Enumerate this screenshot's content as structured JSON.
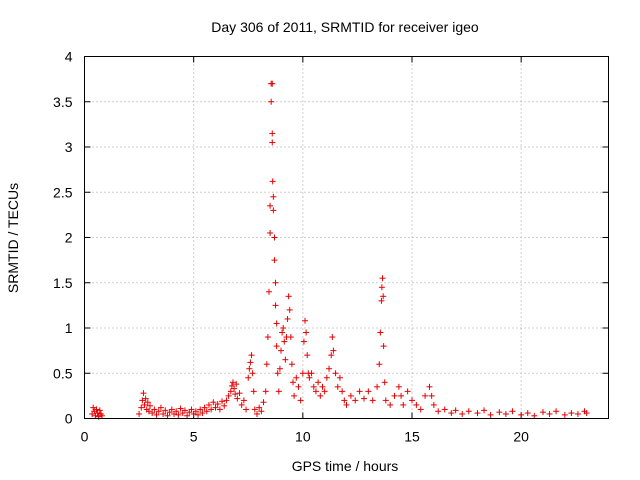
{
  "chart_data": {
    "type": "scatter",
    "title": "Day 306 of 2011, SRMTID for receiver igeo",
    "xlabel": "GPS time / hours",
    "ylabel": "SRMTID / TECUs",
    "xlim": [
      0,
      24
    ],
    "ylim": [
      0,
      4
    ],
    "xticks": [
      0,
      5,
      10,
      15,
      20
    ],
    "yticks": [
      0,
      0.5,
      1,
      1.5,
      2,
      2.5,
      3,
      3.5,
      4
    ],
    "xtick_labels": [
      "0",
      "5",
      "10",
      "15",
      "20"
    ],
    "ytick_labels": [
      "0",
      "0.5",
      "1",
      "1.5",
      "2",
      "2.5",
      "3",
      "3.5",
      "4"
    ],
    "grid": true,
    "legend": "none",
    "marker": "plus",
    "color": "#e60000",
    "series": [
      {
        "points": [
          [
            0.35,
            0.05
          ],
          [
            0.4,
            0.12
          ],
          [
            0.45,
            0.08
          ],
          [
            0.5,
            0.03
          ],
          [
            0.55,
            0.1
          ],
          [
            0.6,
            0.06
          ],
          [
            0.65,
            0.02
          ],
          [
            0.7,
            0.09
          ],
          [
            0.75,
            0.05
          ],
          [
            0.8,
            0.03
          ],
          [
            2.5,
            0.05
          ],
          [
            2.6,
            0.12
          ],
          [
            2.65,
            0.2
          ],
          [
            2.7,
            0.28
          ],
          [
            2.75,
            0.15
          ],
          [
            2.8,
            0.22
          ],
          [
            2.85,
            0.1
          ],
          [
            2.9,
            0.18
          ],
          [
            2.95,
            0.08
          ],
          [
            3.0,
            0.14
          ],
          [
            3.1,
            0.06
          ],
          [
            3.2,
            0.1
          ],
          [
            3.3,
            0.04
          ],
          [
            3.4,
            0.08
          ],
          [
            3.5,
            0.12
          ],
          [
            3.6,
            0.05
          ],
          [
            3.7,
            0.09
          ],
          [
            3.8,
            0.03
          ],
          [
            3.9,
            0.07
          ],
          [
            4.0,
            0.1
          ],
          [
            4.1,
            0.05
          ],
          [
            4.2,
            0.08
          ],
          [
            4.3,
            0.04
          ],
          [
            4.4,
            0.11
          ],
          [
            4.5,
            0.06
          ],
          [
            4.6,
            0.09
          ],
          [
            4.7,
            0.03
          ],
          [
            4.8,
            0.07
          ],
          [
            4.9,
            0.1
          ],
          [
            5.0,
            0.05
          ],
          [
            5.1,
            0.08
          ],
          [
            5.2,
            0.04
          ],
          [
            5.3,
            0.1
          ],
          [
            5.4,
            0.06
          ],
          [
            5.5,
            0.12
          ],
          [
            5.6,
            0.08
          ],
          [
            5.7,
            0.15
          ],
          [
            5.8,
            0.1
          ],
          [
            5.9,
            0.18
          ],
          [
            6.0,
            0.12
          ],
          [
            6.1,
            0.16
          ],
          [
            6.2,
            0.1
          ],
          [
            6.3,
            0.19
          ],
          [
            6.4,
            0.14
          ],
          [
            6.5,
            0.2
          ],
          [
            6.6,
            0.25
          ],
          [
            6.7,
            0.3
          ],
          [
            6.75,
            0.36
          ],
          [
            6.8,
            0.4
          ],
          [
            6.85,
            0.33
          ],
          [
            6.9,
            0.27
          ],
          [
            6.95,
            0.38
          ],
          [
            7.0,
            0.22
          ],
          [
            7.1,
            0.28
          ],
          [
            7.2,
            0.15
          ],
          [
            7.3,
            0.2
          ],
          [
            7.4,
            0.1
          ],
          [
            7.5,
            0.45
          ],
          [
            7.55,
            0.55
          ],
          [
            7.6,
            0.62
          ],
          [
            7.65,
            0.7
          ],
          [
            7.7,
            0.5
          ],
          [
            7.75,
            0.3
          ],
          [
            7.8,
            0.1
          ],
          [
            7.9,
            0.05
          ],
          [
            8.0,
            0.12
          ],
          [
            8.1,
            0.08
          ],
          [
            8.2,
            0.18
          ],
          [
            8.3,
            0.3
          ],
          [
            8.35,
            0.6
          ],
          [
            8.4,
            0.9
          ],
          [
            8.45,
            1.4
          ],
          [
            8.5,
            2.05
          ],
          [
            8.5,
            2.35
          ],
          [
            8.55,
            3.7
          ],
          [
            8.55,
            3.5
          ],
          [
            8.6,
            3.7
          ],
          [
            8.6,
            3.15
          ],
          [
            8.6,
            3.05
          ],
          [
            8.62,
            2.62
          ],
          [
            8.65,
            2.45
          ],
          [
            8.65,
            2.3
          ],
          [
            8.7,
            2.0
          ],
          [
            8.7,
            1.75
          ],
          [
            8.75,
            1.5
          ],
          [
            8.75,
            1.25
          ],
          [
            8.8,
            1.05
          ],
          [
            8.8,
            0.8
          ],
          [
            8.85,
            0.5
          ],
          [
            8.9,
            0.3
          ],
          [
            8.95,
            0.55
          ],
          [
            9.0,
            0.75
          ],
          [
            9.05,
            0.95
          ],
          [
            9.1,
            1.0
          ],
          [
            9.15,
            0.85
          ],
          [
            9.2,
            0.65
          ],
          [
            9.25,
            0.9
          ],
          [
            9.3,
            1.1
          ],
          [
            9.35,
            1.35
          ],
          [
            9.4,
            1.2
          ],
          [
            9.45,
            0.9
          ],
          [
            9.5,
            0.6
          ],
          [
            9.55,
            0.4
          ],
          [
            9.6,
            0.25
          ],
          [
            9.7,
            0.45
          ],
          [
            9.8,
            0.35
          ],
          [
            9.9,
            0.2
          ],
          [
            10.0,
            0.5
          ],
          [
            10.05,
            0.85
          ],
          [
            10.1,
            1.08
          ],
          [
            10.15,
            0.95
          ],
          [
            10.2,
            0.7
          ],
          [
            10.25,
            0.5
          ],
          [
            10.3,
            0.45
          ],
          [
            10.4,
            0.5
          ],
          [
            10.5,
            0.35
          ],
          [
            10.6,
            0.3
          ],
          [
            10.7,
            0.4
          ],
          [
            10.8,
            0.25
          ],
          [
            10.9,
            0.35
          ],
          [
            11.0,
            0.3
          ],
          [
            11.1,
            0.45
          ],
          [
            11.2,
            0.55
          ],
          [
            11.3,
            0.7
          ],
          [
            11.35,
            0.9
          ],
          [
            11.4,
            0.75
          ],
          [
            11.5,
            0.5
          ],
          [
            11.6,
            0.35
          ],
          [
            11.7,
            0.45
          ],
          [
            11.8,
            0.3
          ],
          [
            11.9,
            0.2
          ],
          [
            12.0,
            0.15
          ],
          [
            12.2,
            0.25
          ],
          [
            12.4,
            0.2
          ],
          [
            12.6,
            0.3
          ],
          [
            12.8,
            0.22
          ],
          [
            13.0,
            0.3
          ],
          [
            13.2,
            0.2
          ],
          [
            13.4,
            0.35
          ],
          [
            13.5,
            0.6
          ],
          [
            13.55,
            0.95
          ],
          [
            13.6,
            1.3
          ],
          [
            13.62,
            1.45
          ],
          [
            13.65,
            1.55
          ],
          [
            13.68,
            1.35
          ],
          [
            13.7,
            0.8
          ],
          [
            13.75,
            0.4
          ],
          [
            13.8,
            0.2
          ],
          [
            14.0,
            0.15
          ],
          [
            14.2,
            0.25
          ],
          [
            14.4,
            0.35
          ],
          [
            14.5,
            0.25
          ],
          [
            14.6,
            0.15
          ],
          [
            14.8,
            0.3
          ],
          [
            15.0,
            0.2
          ],
          [
            15.2,
            0.15
          ],
          [
            15.4,
            0.1
          ],
          [
            15.6,
            0.25
          ],
          [
            15.8,
            0.35
          ],
          [
            15.9,
            0.25
          ],
          [
            16.0,
            0.15
          ],
          [
            16.2,
            0.08
          ],
          [
            16.5,
            0.1
          ],
          [
            16.8,
            0.06
          ],
          [
            17.0,
            0.09
          ],
          [
            17.3,
            0.05
          ],
          [
            17.6,
            0.08
          ],
          [
            18.0,
            0.06
          ],
          [
            18.3,
            0.09
          ],
          [
            18.6,
            0.04
          ],
          [
            19.0,
            0.07
          ],
          [
            19.3,
            0.05
          ],
          [
            19.6,
            0.08
          ],
          [
            20.0,
            0.04
          ],
          [
            20.3,
            0.06
          ],
          [
            20.6,
            0.03
          ],
          [
            21.0,
            0.07
          ],
          [
            21.3,
            0.05
          ],
          [
            21.6,
            0.08
          ],
          [
            22.0,
            0.04
          ],
          [
            22.3,
            0.06
          ],
          [
            22.6,
            0.05
          ],
          [
            22.9,
            0.08
          ],
          [
            23.0,
            0.06
          ]
        ]
      }
    ]
  }
}
